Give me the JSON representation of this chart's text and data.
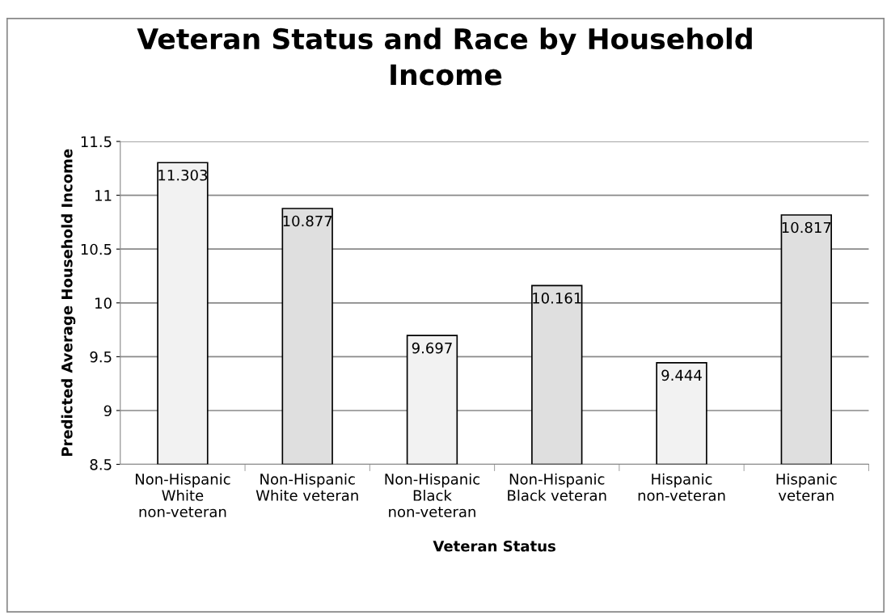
{
  "chart_data": {
    "type": "bar",
    "title": "Veteran Status and Race by Household Income",
    "xlabel": "Veteran Status",
    "ylabel": "Predicted Average Household Income",
    "categories": [
      "Non-Hispanic White non-veteran",
      "Non-Hispanic White veteran",
      "Non-Hispanic Black non-veteran",
      "Non-Hispanic Black veteran",
      "Hispanic non-veteran",
      "Hispanic veteran"
    ],
    "values": [
      11.303,
      10.877,
      9.697,
      10.161,
      9.444,
      10.817
    ],
    "colors": [
      "#f2f2f2",
      "#dfdfdf",
      "#f2f2f2",
      "#dfdfdf",
      "#f2f2f2",
      "#dfdfdf"
    ],
    "ylim": [
      8.5,
      11.5
    ],
    "yticks": [
      8.5,
      9,
      9.5,
      10,
      10.5,
      11,
      11.5
    ],
    "grid": "y",
    "data_labels": true,
    "legend": false
  }
}
